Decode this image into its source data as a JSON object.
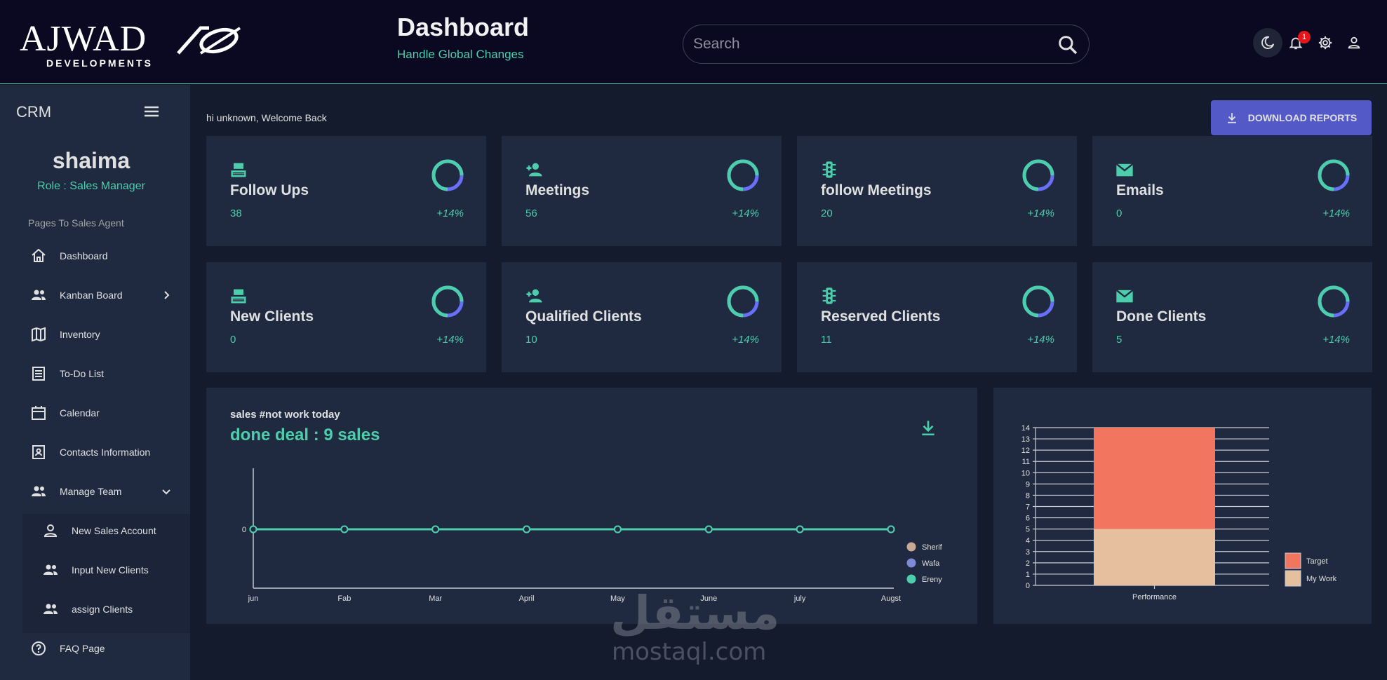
{
  "brand": {
    "name": "AJWAD",
    "sub": "DEVELOPMENTS"
  },
  "header": {
    "title": "Dashboard",
    "subtitle": "Handle Global Changes"
  },
  "search": {
    "placeholder": "Search",
    "value": ""
  },
  "notifications": {
    "count": "1"
  },
  "sidebar": {
    "app_name": "CRM",
    "user_name": "shaima",
    "user_role": "Role : Sales Manager",
    "section_label": "Pages To Sales Agent",
    "items": [
      {
        "label": "Dashboard",
        "icon": "home-icon"
      },
      {
        "label": "Kanban Board",
        "icon": "people-icon"
      },
      {
        "label": "Inventory",
        "icon": "map-icon"
      },
      {
        "label": "To-Do List",
        "icon": "list-icon"
      },
      {
        "label": "Calendar",
        "icon": "calendar-icon"
      },
      {
        "label": "Contacts Information",
        "icon": "contact-icon"
      },
      {
        "label": "Manage Team",
        "icon": "people-icon"
      },
      {
        "label": "New Sales Account",
        "icon": "person-icon"
      },
      {
        "label": "Input New Clients",
        "icon": "people-icon"
      },
      {
        "label": "assign Clients",
        "icon": "people-icon"
      },
      {
        "label": "FAQ Page",
        "icon": "help-icon"
      }
    ]
  },
  "main": {
    "welcome": "hi unknown, Welcome Back",
    "download_label": "DOWNLOAD REPORTS",
    "cards": [
      {
        "title": "Follow Ups",
        "value": "38",
        "change": "+14%",
        "icon": "cash-register-icon",
        "progress": 0.75
      },
      {
        "title": "Meetings",
        "value": "56",
        "change": "+14%",
        "icon": "person-add-icon",
        "progress": 0.75
      },
      {
        "title": "follow Meetings",
        "value": "20",
        "change": "+14%",
        "icon": "traffic-icon",
        "progress": 0.75
      },
      {
        "title": "Emails",
        "value": "0",
        "change": "+14%",
        "icon": "email-icon",
        "progress": 0.75
      },
      {
        "title": "New Clients",
        "value": "0",
        "change": "+14%",
        "icon": "cash-register-icon",
        "progress": 0.75
      },
      {
        "title": "Qualified Clients",
        "value": "10",
        "change": "+14%",
        "icon": "person-add-icon",
        "progress": 0.75
      },
      {
        "title": "Reserved Clients",
        "value": "11",
        "change": "+14%",
        "icon": "traffic-icon",
        "progress": 0.75
      },
      {
        "title": "Done Clients",
        "value": "5",
        "change": "+14%",
        "icon": "email-icon",
        "progress": 0.75
      }
    ],
    "sales_panel": {
      "subtitle": "sales #not work today",
      "title": "done deal : 9 sales"
    }
  },
  "colors": {
    "accent": "#4cceac",
    "button": "#535ac8",
    "target": "#f2765f",
    "my_work": "#e6bf9f"
  },
  "chart_data": [
    {
      "type": "line",
      "categories": [
        "jun",
        "Fab",
        "Mar",
        "April",
        "May",
        "June",
        "july",
        "Augst"
      ],
      "yticks": [
        "0"
      ],
      "series": [
        {
          "name": "Sherif",
          "color": "#c9a995",
          "values": [
            0,
            0,
            0,
            0,
            0,
            0,
            0,
            0
          ]
        },
        {
          "name": "Wafa",
          "color": "#7d8ad6",
          "values": [
            0,
            0,
            0,
            0,
            0,
            0,
            0,
            0
          ]
        },
        {
          "name": "Ereny",
          "color": "#4cceac",
          "values": [
            0,
            0,
            0,
            0,
            0,
            0,
            0,
            0
          ]
        }
      ],
      "legend": "right"
    },
    {
      "type": "bar",
      "stacked": true,
      "categories": [
        "Performance"
      ],
      "ylim": [
        0,
        14
      ],
      "series": [
        {
          "name": "My Work",
          "color": "#e6bf9f",
          "values": [
            5
          ]
        },
        {
          "name": "Target",
          "color": "#f2765f",
          "values": [
            9
          ]
        }
      ],
      "legend_order": [
        "Target",
        "My Work"
      ],
      "legend": "right",
      "grid": true
    }
  ],
  "watermark": {
    "arabic": "مستقل",
    "latin": "mostaql.com"
  }
}
